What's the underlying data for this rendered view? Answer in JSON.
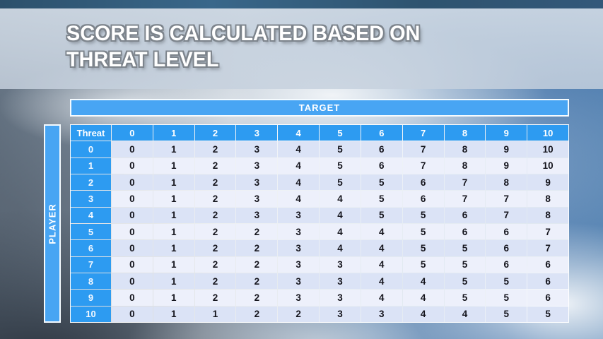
{
  "slide": {
    "title_line1": "SCORE IS CALCULATED BASED ON",
    "title_line2": "THREAT LEVEL"
  },
  "matrix": {
    "target_axis_label": "TARGET",
    "player_axis_label": "PLAYER",
    "corner_header": "Threat",
    "column_headers": [
      "0",
      "1",
      "2",
      "3",
      "4",
      "5",
      "6",
      "7",
      "8",
      "9",
      "10"
    ],
    "rows": [
      {
        "threat": "0",
        "values": [
          "0",
          "1",
          "2",
          "3",
          "4",
          "5",
          "6",
          "7",
          "8",
          "9",
          "10"
        ]
      },
      {
        "threat": "1",
        "values": [
          "0",
          "1",
          "2",
          "3",
          "4",
          "5",
          "6",
          "7",
          "8",
          "9",
          "10"
        ]
      },
      {
        "threat": "2",
        "values": [
          "0",
          "1",
          "2",
          "3",
          "4",
          "5",
          "5",
          "6",
          "7",
          "8",
          "9"
        ]
      },
      {
        "threat": "3",
        "values": [
          "0",
          "1",
          "2",
          "3",
          "4",
          "4",
          "5",
          "6",
          "7",
          "7",
          "8"
        ]
      },
      {
        "threat": "4",
        "values": [
          "0",
          "1",
          "2",
          "3",
          "3",
          "4",
          "5",
          "5",
          "6",
          "7",
          "8"
        ]
      },
      {
        "threat": "5",
        "values": [
          "0",
          "1",
          "2",
          "2",
          "3",
          "4",
          "4",
          "5",
          "6",
          "6",
          "7"
        ]
      },
      {
        "threat": "6",
        "values": [
          "0",
          "1",
          "2",
          "2",
          "3",
          "4",
          "4",
          "5",
          "5",
          "6",
          "7"
        ]
      },
      {
        "threat": "7",
        "values": [
          "0",
          "1",
          "2",
          "2",
          "3",
          "3",
          "4",
          "5",
          "5",
          "6",
          "6"
        ]
      },
      {
        "threat": "8",
        "values": [
          "0",
          "1",
          "2",
          "2",
          "3",
          "3",
          "4",
          "4",
          "5",
          "5",
          "6"
        ]
      },
      {
        "threat": "9",
        "values": [
          "0",
          "1",
          "2",
          "2",
          "3",
          "3",
          "4",
          "4",
          "5",
          "5",
          "6"
        ]
      },
      {
        "threat": "10",
        "values": [
          "0",
          "1",
          "1",
          "2",
          "2",
          "3",
          "3",
          "4",
          "4",
          "5",
          "5"
        ]
      }
    ]
  },
  "colors": {
    "header_blue": "#2d9bf1",
    "axis_bar_blue": "#48a5f3",
    "row_even_bg": "#dbe3f6",
    "row_odd_bg": "#edf0fb",
    "cell_text": "#15151d",
    "title_fill": "#ffffff",
    "title_outline": "#7d848c",
    "title_band_bg": "#c9d4e0",
    "top_sky": "#2e536f"
  },
  "chart_data": {
    "type": "table",
    "title": "Score is calculated based on threat level",
    "row_axis": "PLAYER (Threat)",
    "col_axis": "TARGET",
    "columns": [
      0,
      1,
      2,
      3,
      4,
      5,
      6,
      7,
      8,
      9,
      10
    ],
    "row_labels": [
      0,
      1,
      2,
      3,
      4,
      5,
      6,
      7,
      8,
      9,
      10
    ],
    "values": [
      [
        0,
        1,
        2,
        3,
        4,
        5,
        6,
        7,
        8,
        9,
        10
      ],
      [
        0,
        1,
        2,
        3,
        4,
        5,
        6,
        7,
        8,
        9,
        10
      ],
      [
        0,
        1,
        2,
        3,
        4,
        5,
        5,
        6,
        7,
        8,
        9
      ],
      [
        0,
        1,
        2,
        3,
        4,
        4,
        5,
        6,
        7,
        7,
        8
      ],
      [
        0,
        1,
        2,
        3,
        3,
        4,
        5,
        5,
        6,
        7,
        8
      ],
      [
        0,
        1,
        2,
        2,
        3,
        4,
        4,
        5,
        6,
        6,
        7
      ],
      [
        0,
        1,
        2,
        2,
        3,
        4,
        4,
        5,
        5,
        6,
        7
      ],
      [
        0,
        1,
        2,
        2,
        3,
        3,
        4,
        5,
        5,
        6,
        6
      ],
      [
        0,
        1,
        2,
        2,
        3,
        3,
        4,
        4,
        5,
        5,
        6
      ],
      [
        0,
        1,
        2,
        2,
        3,
        3,
        4,
        4,
        5,
        5,
        6
      ],
      [
        0,
        1,
        1,
        2,
        2,
        3,
        3,
        4,
        4,
        5,
        5
      ]
    ]
  }
}
